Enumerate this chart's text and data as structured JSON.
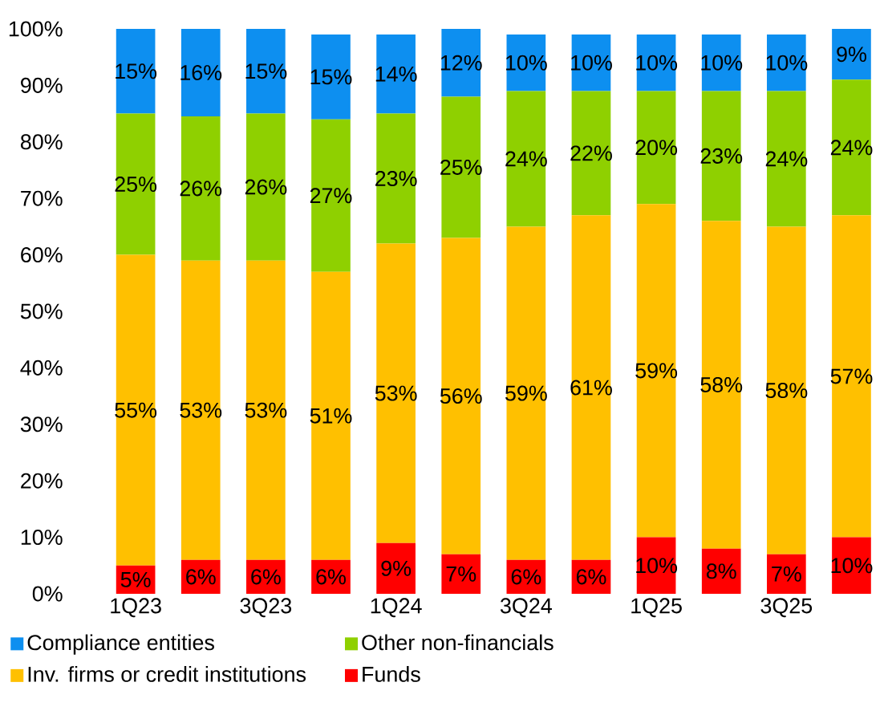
{
  "chart_data": {
    "type": "bar",
    "stacked": true,
    "categories": [
      "1Q23",
      null,
      "3Q23",
      null,
      "1Q24",
      null,
      "3Q24",
      null,
      "1Q25",
      null,
      "3Q25",
      null
    ],
    "series": [
      {
        "name": "Funds",
        "color": "#ff0000",
        "values": [
          5,
          6,
          6,
          6,
          9,
          7,
          6,
          6,
          10,
          8,
          7,
          10
        ],
        "value_labels": [
          "5%",
          "6%",
          "6%",
          "6%",
          "9%",
          "7%",
          "6%",
          "6%",
          "10%",
          "8%",
          "7%",
          "10%"
        ]
      },
      {
        "name": "Inv. firms or credit institutions",
        "color": "#ffc000",
        "values": [
          55,
          53,
          53,
          51,
          53,
          56,
          59,
          61,
          59,
          58,
          58,
          57
        ],
        "value_labels": [
          "55%",
          "53%",
          "53%",
          "51%",
          "53%",
          "56%",
          "59%",
          "61%",
          "59%",
          "58%",
          "58%",
          "57%"
        ]
      },
      {
        "name": "Other non-financials",
        "color": "#8fd000",
        "values": [
          25,
          25.5,
          26,
          27,
          23,
          25,
          24,
          22,
          20,
          23,
          24,
          24
        ],
        "value_labels": [
          "25%",
          "26%",
          "26%",
          "27%",
          "23%",
          "25%",
          "24%",
          "22%",
          "20%",
          "23%",
          "24%",
          "24%"
        ]
      },
      {
        "name": "Compliance entities",
        "color": "#0d8ff0",
        "values": [
          15,
          15.5,
          15,
          15,
          14,
          12,
          10,
          10,
          10,
          10,
          10,
          9
        ],
        "value_labels": [
          "15%",
          "16%",
          "15%",
          "15%",
          "14%",
          "12%",
          "10%",
          "10%",
          "10%",
          "10%",
          "10%",
          "9%"
        ]
      }
    ],
    "ylim": [
      0,
      100
    ],
    "yticks": [
      {
        "value": 0,
        "label": "0%"
      },
      {
        "value": 10,
        "label": "10%"
      },
      {
        "value": 20,
        "label": "20%"
      },
      {
        "value": 30,
        "label": "30%"
      },
      {
        "value": 40,
        "label": "40%"
      },
      {
        "value": 50,
        "label": "50%"
      },
      {
        "value": 60,
        "label": "60%"
      },
      {
        "value": 70,
        "label": "70%"
      },
      {
        "value": 80,
        "label": "80%"
      },
      {
        "value": 90,
        "label": "90%"
      },
      {
        "value": 100,
        "label": "100%"
      }
    ],
    "legend": "bottom"
  }
}
